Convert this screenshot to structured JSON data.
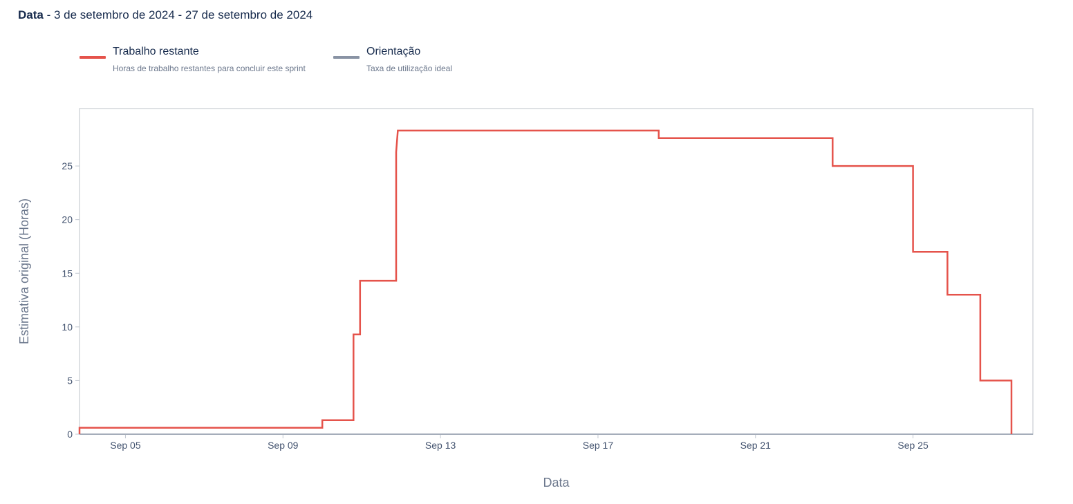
{
  "header": {
    "label": "Data",
    "separator": " - ",
    "range": "3 de setembro de 2024 - 27 de setembro de 2024"
  },
  "legend": [
    {
      "name": "Trabalho restante",
      "description": "Horas de trabalho restantes para concluir este sprint",
      "color": "#e5534b"
    },
    {
      "name": "Orientação",
      "description": "Taxa de utilização ideal",
      "color": "#8993a4"
    }
  ],
  "chart_data": {
    "type": "line",
    "title": "",
    "xlabel": "Data",
    "ylabel": "Estimativa original (Horas)",
    "x_is_date": true,
    "xlim": [
      "2024-09-03T20:00",
      "2024-09-27T12:00"
    ],
    "ylim": [
      0,
      30
    ],
    "y_ticks": [
      0,
      5,
      10,
      15,
      20,
      25
    ],
    "x_ticks": [
      "2024-09-05",
      "2024-09-09",
      "2024-09-13",
      "2024-09-17",
      "2024-09-21",
      "2024-09-25"
    ],
    "x_tick_labels": [
      "Sep 05",
      "Sep 09",
      "Sep 13",
      "Sep 17",
      "Sep 21",
      "Sep 25"
    ],
    "grid": false,
    "legend_position": "top-left",
    "series": [
      {
        "name": "Trabalho restante",
        "color": "#e5534b",
        "step": true,
        "points": [
          {
            "x": "2024-09-03T20:00",
            "y": 0
          },
          {
            "x": "2024-09-03T20:00",
            "y": 0.6
          },
          {
            "x": "2024-09-10T00:00",
            "y": 0.6
          },
          {
            "x": "2024-09-10T00:00",
            "y": 1.3
          },
          {
            "x": "2024-09-10T19:00",
            "y": 1.3
          },
          {
            "x": "2024-09-10T19:00",
            "y": 9.3
          },
          {
            "x": "2024-09-10T23:00",
            "y": 9.3
          },
          {
            "x": "2024-09-10T23:00",
            "y": 14.3
          },
          {
            "x": "2024-09-11T21:00",
            "y": 14.3
          },
          {
            "x": "2024-09-11T21:00",
            "y": 26.3
          },
          {
            "x": "2024-09-11T22:00",
            "y": 28.3
          },
          {
            "x": "2024-09-18T13:00",
            "y": 28.3
          },
          {
            "x": "2024-09-18T13:00",
            "y": 27.6
          },
          {
            "x": "2024-09-22T23:00",
            "y": 27.6
          },
          {
            "x": "2024-09-22T23:00",
            "y": 25.0
          },
          {
            "x": "2024-09-25T00:00",
            "y": 25.0
          },
          {
            "x": "2024-09-25T00:00",
            "y": 17.0
          },
          {
            "x": "2024-09-25T21:00",
            "y": 17.0
          },
          {
            "x": "2024-09-25T21:00",
            "y": 13.0
          },
          {
            "x": "2024-09-26T17:00",
            "y": 13.0
          },
          {
            "x": "2024-09-26T17:00",
            "y": 5.0
          },
          {
            "x": "2024-09-27T12:00",
            "y": 5.0
          },
          {
            "x": "2024-09-27T12:00",
            "y": 0
          }
        ]
      }
    ]
  }
}
